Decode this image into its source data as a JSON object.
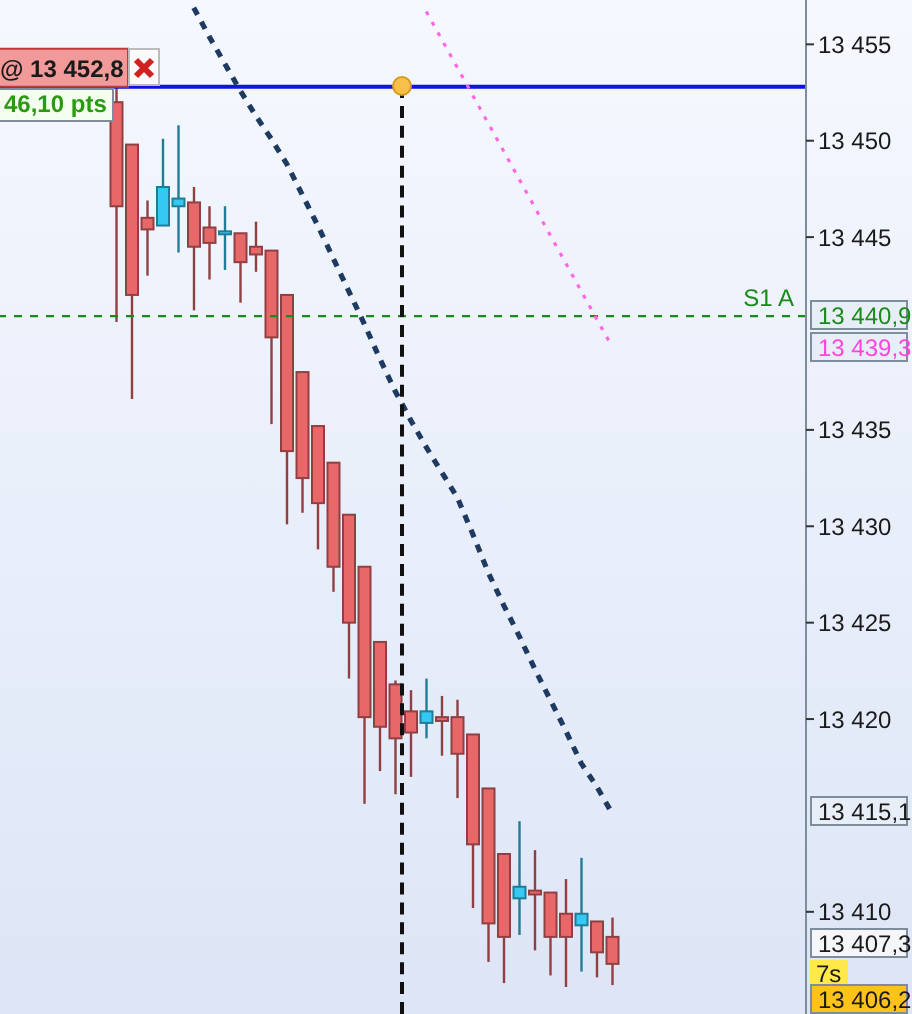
{
  "chart_data": {
    "type": "candlestick",
    "categories": [
      null,
      null,
      null,
      null,
      null,
      null,
      null,
      null,
      null,
      null,
      null,
      null,
      null,
      null,
      null,
      null,
      null,
      null,
      null,
      null,
      null,
      null,
      null,
      null,
      null,
      null,
      null,
      null,
      null,
      null,
      null,
      null,
      null,
      null,
      null,
      null,
      null,
      null,
      null
    ],
    "ohlc": [
      null,
      null,
      null,
      null,
      null,
      null,
      [
        13452.0,
        13453.0,
        13440.6,
        13446.6
      ],
      [
        13449.8,
        13449.8,
        13436.6,
        13442.0
      ],
      [
        13446.0,
        13446.9,
        13443.0,
        13445.4
      ],
      [
        13445.6,
        13450.1,
        13445.6,
        13447.6
      ],
      [
        13446.6,
        13450.8,
        13444.2,
        13447.0
      ],
      [
        13446.8,
        13447.6,
        13441.2,
        13444.5
      ],
      [
        13445.5,
        13446.6,
        13442.8,
        13444.7
      ],
      [
        13445.2,
        13446.6,
        13443.3,
        13445.3
      ],
      [
        13445.2,
        13445.2,
        13441.6,
        13443.7
      ],
      [
        13444.5,
        13445.8,
        13443.2,
        13444.1
      ],
      [
        13444.3,
        13444.3,
        13435.3,
        13439.8
      ],
      [
        13442.0,
        13442.0,
        13430.1,
        13433.9
      ],
      [
        13438.0,
        13438.0,
        13430.7,
        13432.5
      ],
      [
        13435.2,
        13435.2,
        13428.8,
        13431.2
      ],
      [
        13433.3,
        13433.3,
        13426.6,
        13427.9
      ],
      [
        13430.6,
        13430.6,
        13422.1,
        13425.0
      ],
      [
        13427.9,
        13427.9,
        13415.6,
        13420.1
      ],
      [
        13424.0,
        13424.0,
        13417.3,
        13419.6
      ],
      [
        13421.8,
        13422.0,
        13416.1,
        13419.0
      ],
      [
        13420.4,
        13421.5,
        13417.0,
        13419.3
      ],
      [
        13419.8,
        13422.1,
        13419.0,
        13420.4
      ],
      [
        13420.1,
        13421.2,
        13418.1,
        13419.9
      ],
      [
        13420.1,
        13421.0,
        13415.9,
        13418.2
      ],
      [
        13419.2,
        13419.2,
        13410.2,
        13413.5
      ],
      [
        13416.4,
        13416.4,
        13407.4,
        13409.4
      ],
      [
        13413.0,
        13413.0,
        13406.3,
        13408.7
      ],
      [
        13410.7,
        13414.7,
        13408.8,
        13411.3
      ],
      [
        13411.1,
        13413.2,
        13408.0,
        13410.9
      ],
      [
        13411.0,
        13411.0,
        13406.7,
        13408.7
      ],
      [
        13409.9,
        13411.7,
        13406.1,
        13408.7
      ],
      [
        13409.3,
        13412.8,
        13406.9,
        13409.9
      ],
      [
        13409.5,
        13409.5,
        13406.6,
        13407.9
      ],
      [
        13408.7,
        13409.7,
        13406.2,
        13407.3
      ]
    ],
    "colors": [
      "#e8686a",
      "#e8686a",
      "#e8686a",
      "#e8686a",
      "#e8686a",
      "#e8686a",
      "#e8686a",
      "#e8686a",
      "#e8686a",
      "#35c8f2",
      "#35c8f2",
      "#e8686a",
      "#e8686a",
      "#35c8f2",
      "#e8686a",
      "#e8686a",
      "#e8686a",
      "#e8686a",
      "#e8686a",
      "#e8686a",
      "#e8686a",
      "#e8686a",
      "#e8686a",
      "#e8686a",
      "#e8686a",
      "#e8686a",
      "#35c8f2",
      "#e8686a",
      "#e8686a",
      "#e8686a",
      "#e8686a",
      "#e8686a",
      "#35c8f2",
      "#e8686a",
      "#e8686a",
      "#e8686a",
      "#35c8f2",
      "#e8686a",
      "#e8686a"
    ],
    "series": [
      {
        "type": "line",
        "color": "#1f3a60",
        "line_style": "dashed",
        "values": [
          null,
          null,
          null,
          null,
          null,
          null,
          null,
          null,
          null,
          null,
          null,
          13456.9,
          13455.4,
          13454.0,
          13452.6,
          13451.3,
          13450.1,
          13448.8,
          13447.2,
          13445.6,
          13443.9,
          13442.2,
          13440.5,
          13438.7,
          13437.0,
          13435.5,
          13434.1,
          13432.8,
          13431.5,
          13429.6,
          13427.6,
          13425.9,
          13424.3,
          13422.6,
          13421.0,
          13419.4,
          13417.7,
          13416.5,
          13415.1
        ]
      },
      {
        "type": "line",
        "color": "#ff66e6",
        "line_style": "dotted",
        "values": [
          null,
          null,
          null,
          null,
          null,
          null,
          null,
          null,
          null,
          null,
          null,
          null,
          null,
          null,
          null,
          null,
          null,
          null,
          null,
          null,
          null,
          null,
          null,
          null,
          null,
          null,
          13456.7,
          null,
          null,
          null,
          null,
          null,
          null,
          null,
          null,
          null,
          null,
          null,
          13439.3
        ]
      }
    ],
    "ylim": [
      13404.7,
      13457.3
    ],
    "yticks": [
      {
        "value": 13410,
        "label": "13 410"
      },
      {
        "value": 13420,
        "label": "13 420"
      },
      {
        "value": 13425,
        "label": "13 425"
      },
      {
        "value": 13430,
        "label": "13 430"
      },
      {
        "value": 13435,
        "label": "13 435"
      },
      {
        "value": 13445,
        "label": "13 445"
      },
      {
        "value": 13450,
        "label": "13 450"
      },
      {
        "value": 13455,
        "label": "13 455"
      }
    ],
    "tick_labels": "y",
    "grid": false,
    "marker": "none",
    "ref_lines": [
      {
        "axis": "y",
        "value": 13452.8,
        "label": "@ 13 452,8",
        "color": "#0a14e6",
        "line_style": "solid"
      },
      {
        "axis": "y",
        "value": 13440.9,
        "label": "S1 A",
        "color": "#1a8a1a",
        "line_style": "dashed"
      }
    ],
    "annotations": [
      "46,10 pts",
      "13 440,9",
      "13 439,3",
      "13 415,1",
      "13 407,3",
      "7s",
      "13 406,2"
    ]
  }
}
